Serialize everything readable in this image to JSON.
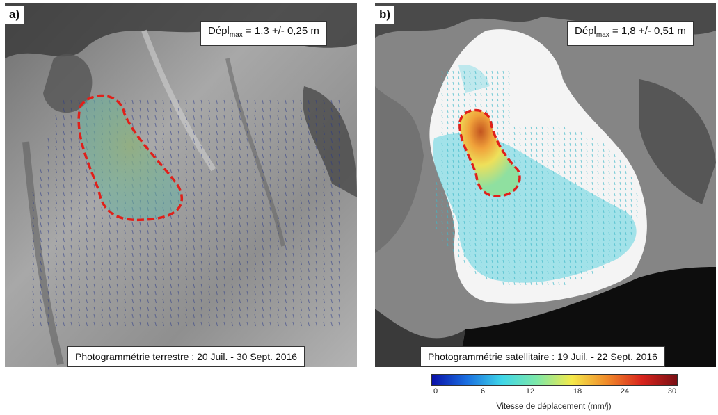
{
  "panel_a": {
    "label": "a)",
    "displacement_prefix": "Dépl",
    "displacement_sub": "max",
    "displacement_value": " = 1,3 +/- 0,25  m",
    "caption": "Photogrammétrie terrestre : 20 Juil. - 30 Sept.  2016"
  },
  "panel_b": {
    "label": "b)",
    "displacement_prefix": "Dépl",
    "displacement_sub": "max",
    "displacement_value": " = 1,8 +/- 0,51  m",
    "caption": "Photogrammétrie satellitaire : 19 Juil. - 22 Sept.  2016"
  },
  "colorbar": {
    "title": "Vitesse de déplacement (mm/j)",
    "ticks": [
      "0",
      "6",
      "12",
      "18",
      "24",
      "30"
    ],
    "colors": [
      "#0a10a8",
      "#1a6fe0",
      "#3fd6e8",
      "#7ee8a8",
      "#f4e94a",
      "#f08a2a",
      "#d8241c",
      "#7a0f14"
    ]
  },
  "colors": {
    "outline": "#e0201a",
    "vector_a": "#2a3a8a",
    "vector_b": "#3fb8c8"
  }
}
